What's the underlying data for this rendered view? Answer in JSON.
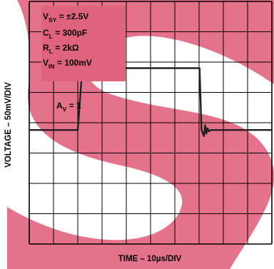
{
  "chart_data": {
    "type": "line",
    "title": "",
    "xlabel": "TIME – 10µs/DIV",
    "ylabel": "VOLTAGE – 50mV/DIV",
    "x_divisions": 10,
    "y_divisions": 8,
    "x_unit": "µs",
    "x_per_div": 10,
    "y_unit": "mV",
    "y_per_div": 50,
    "grid": true,
    "xlim": [
      0,
      100
    ],
    "ylim": [
      -200,
      200
    ],
    "annotations": {
      "vsy": {
        "main": "V",
        "sub": "SY",
        "rest": " = ±2.5V"
      },
      "cl": {
        "main": "C",
        "sub": "L",
        "rest": " = 300pF"
      },
      "rl": {
        "main": "R",
        "sub": "L",
        "rest": " = 2kΩ"
      },
      "vin": {
        "main": "V",
        "sub": "IN",
        "rest": " = 100mV"
      },
      "av": {
        "main": "A",
        "sub": "V",
        "rest": " = 1"
      }
    },
    "series": [
      {
        "color": "#231f20",
        "x": [
          0,
          20.0,
          21.9,
          22.5,
          23.0,
          23.5,
          24.0,
          24.5,
          25.5,
          70.2,
          71.0,
          72.0,
          72.5,
          73.0,
          73.5,
          74.0,
          75.0,
          100
        ],
        "y": [
          -12,
          -12,
          92,
          99,
          85,
          93,
          88,
          90,
          90,
          90,
          -12,
          -22,
          -4,
          -18,
          -9,
          -14,
          -12,
          -12
        ]
      }
    ],
    "colors": {
      "background_shape": "#e0637d",
      "grid": "#000000",
      "trace": "#231f20"
    }
  }
}
